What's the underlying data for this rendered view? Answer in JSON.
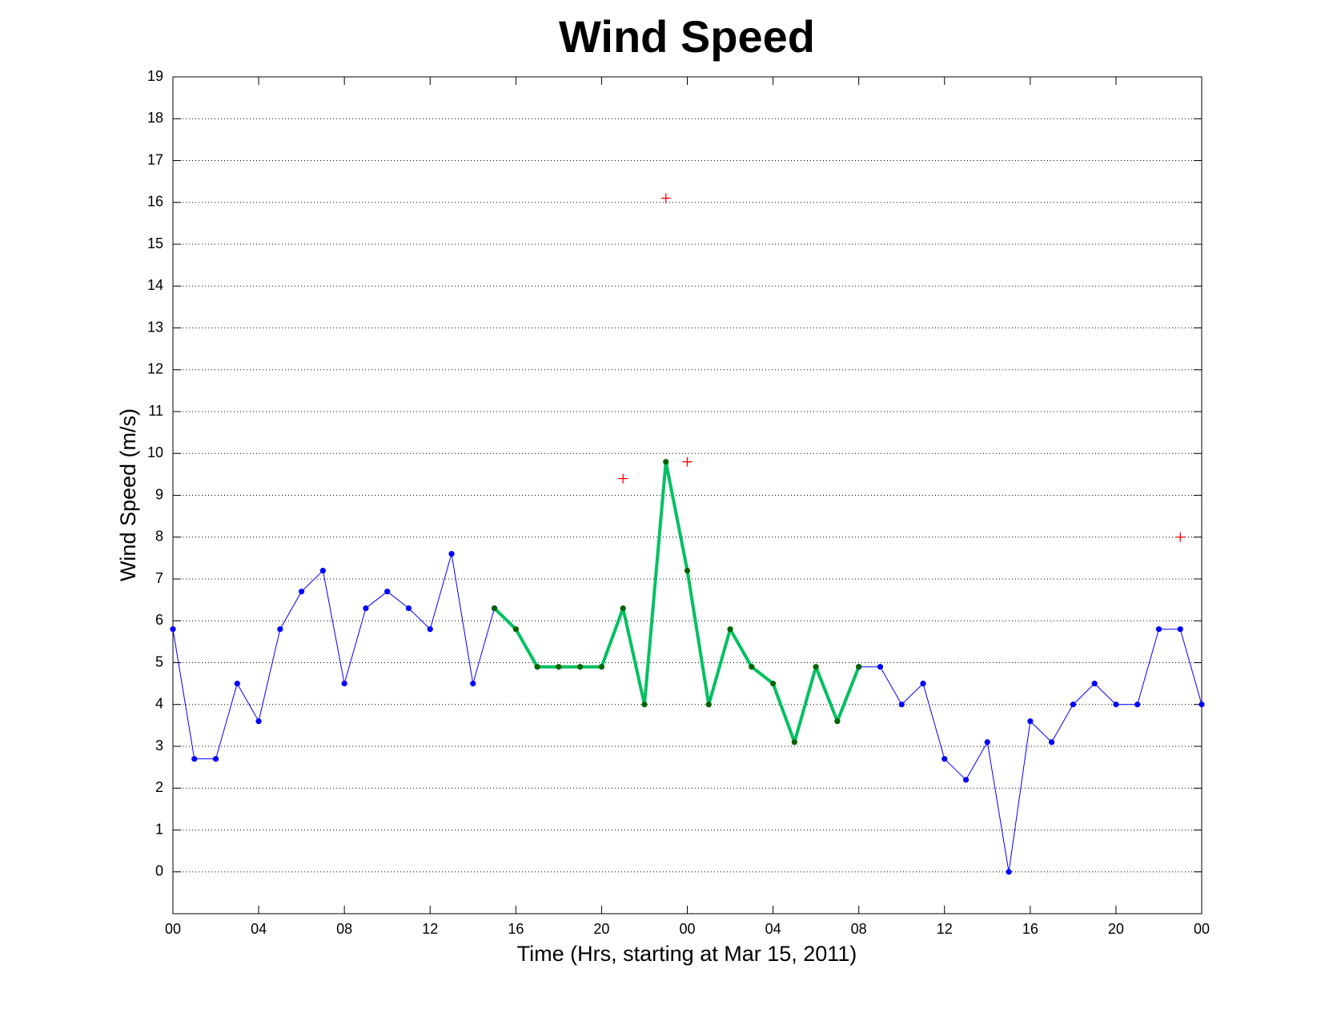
{
  "chart_data": {
    "type": "line",
    "title": "Wind Speed",
    "xlabel": "Time (Hrs, starting at Mar 15, 2011)",
    "ylabel": "Wind Speed (m/s)",
    "x": [
      0,
      1,
      2,
      3,
      4,
      5,
      6,
      7,
      8,
      9,
      10,
      11,
      12,
      13,
      14,
      15,
      16,
      17,
      18,
      19,
      20,
      21,
      22,
      23,
      24,
      25,
      26,
      27,
      28,
      29,
      30,
      31,
      32,
      33,
      34,
      35,
      36,
      37,
      38,
      39,
      40,
      41,
      42,
      43,
      44,
      45,
      46,
      47,
      48
    ],
    "series": [
      {
        "color": "#0000ff",
        "marker_color": "#0000ff",
        "line_width": 1,
        "marker": "dot",
        "values": [
          5.8,
          2.7,
          2.7,
          4.5,
          3.6,
          5.8,
          6.7,
          7.2,
          4.5,
          6.3,
          6.7,
          6.3,
          5.8,
          7.6,
          4.5,
          6.3,
          null,
          null,
          null,
          null,
          null,
          null,
          null,
          null,
          null,
          null,
          null,
          null,
          null,
          null,
          null,
          null,
          4.9,
          4.9,
          4.0,
          4.5,
          2.7,
          2.2,
          3.1,
          0,
          3.6,
          3.1,
          4.0,
          4.5,
          4.0,
          4.0,
          5.8,
          5.8,
          4.0
        ]
      },
      {
        "color": "#00c060",
        "marker_color": "#006400",
        "line_width": 4,
        "marker": "dot",
        "values": [
          null,
          null,
          null,
          null,
          null,
          null,
          null,
          null,
          null,
          null,
          null,
          null,
          null,
          null,
          null,
          6.3,
          5.8,
          4.9,
          4.9,
          4.9,
          4.9,
          6.3,
          4.0,
          9.8,
          7.2,
          4.0,
          5.8,
          4.9,
          4.5,
          3.1,
          4.9,
          3.6,
          4.9,
          null,
          null,
          null,
          null,
          null,
          null,
          null,
          null,
          null,
          null,
          null,
          null,
          null,
          null,
          null,
          null
        ]
      },
      {
        "color": "#ff0000",
        "marker_color": "#ff0000",
        "line_width": 0,
        "marker": "plus",
        "x": [
          21,
          23,
          24,
          47
        ],
        "values": [
          9.4,
          16.1,
          9.8,
          8.0
        ]
      }
    ],
    "xlim": [
      0,
      48
    ],
    "xticks": [
      {
        "value": 0,
        "label": "00"
      },
      {
        "value": 4,
        "label": "04"
      },
      {
        "value": 8,
        "label": "08"
      },
      {
        "value": 12,
        "label": "12"
      },
      {
        "value": 16,
        "label": "16"
      },
      {
        "value": 20,
        "label": "20"
      },
      {
        "value": 24,
        "label": "00"
      },
      {
        "value": 28,
        "label": "04"
      },
      {
        "value": 32,
        "label": "08"
      },
      {
        "value": 36,
        "label": "12"
      },
      {
        "value": 40,
        "label": "16"
      },
      {
        "value": 44,
        "label": "20"
      },
      {
        "value": 48,
        "label": "00"
      }
    ],
    "ylim": [
      -1,
      19
    ],
    "yticks": [
      0,
      1,
      2,
      3,
      4,
      5,
      6,
      7,
      8,
      9,
      10,
      11,
      12,
      13,
      14,
      15,
      16,
      17,
      18,
      19
    ],
    "grid": "y"
  }
}
